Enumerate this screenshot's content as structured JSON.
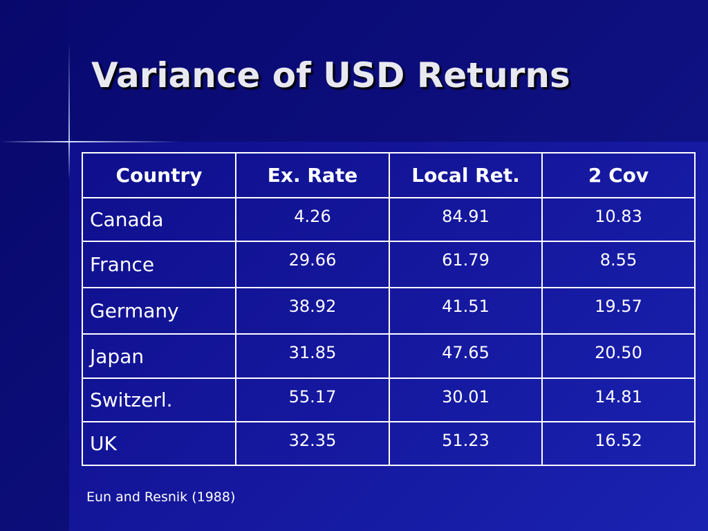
{
  "title": "Variance of USD Returns",
  "table": {
    "header": [
      "Country",
      "Ex. Rate",
      "Local Ret.",
      "2 Cov"
    ],
    "rows": [
      [
        "Canada",
        "4.26",
        "84.91",
        "10.83"
      ],
      [
        "France",
        "29.66",
        "61.79",
        "8.55"
      ],
      [
        "Germany",
        "38.92",
        "41.51",
        "19.57"
      ],
      [
        "Japan",
        "31.85",
        "47.65",
        "20.50"
      ],
      [
        "Switzerl.",
        "55.17",
        "30.01",
        "14.81"
      ],
      [
        "UK",
        "32.35",
        "51.23",
        "16.52"
      ]
    ]
  },
  "source": "Eun and Resnik (1988)"
}
